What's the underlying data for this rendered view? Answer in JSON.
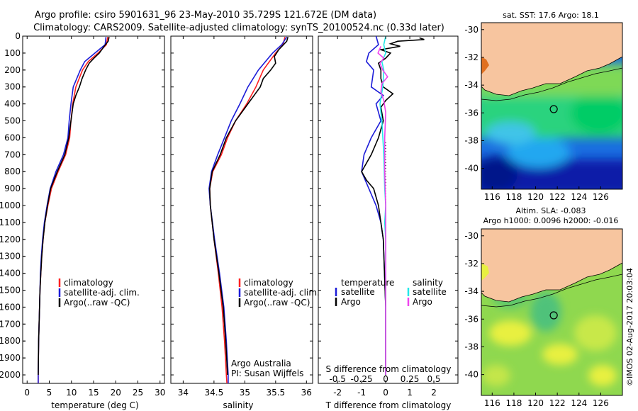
{
  "header": {
    "line1": "Argo profile: csiro 5901631_96 23-May-2010 35.729S 121.672E (DM data)",
    "line2": "Climatology: CARS2009. Satellite-adjusted climatology: synTS_20100524.nc (0.33d later)"
  },
  "colors": {
    "climatology": "#ff2020",
    "satellite": "#1c1cd8",
    "argo": "#000000",
    "satellite_s": "#22e8e8",
    "argo_s": "#ee44ee",
    "land": "#f7c59f"
  },
  "chart_data": [
    {
      "type": "line",
      "id": "temperature",
      "xlabel": "temperature (deg C)",
      "xlim": [
        -1,
        31
      ],
      "xticks": [
        "0",
        "5",
        "10",
        "15",
        "20",
        "25",
        "30"
      ],
      "xtick_values": [
        0,
        5,
        10,
        15,
        20,
        25,
        30
      ],
      "ylim": [
        2050,
        0
      ],
      "yticks": [
        "0",
        "100",
        "200",
        "300",
        "400",
        "500",
        "600",
        "700",
        "800",
        "900",
        "1000",
        "1100",
        "1200",
        "1300",
        "1400",
        "1500",
        "1600",
        "1700",
        "1800",
        "1900",
        "2000"
      ],
      "ytick_values": [
        0,
        100,
        200,
        300,
        400,
        500,
        600,
        700,
        800,
        900,
        1000,
        1100,
        1200,
        1300,
        1400,
        1500,
        1600,
        1700,
        1800,
        1900,
        2000
      ],
      "legend": [
        "climatology",
        "satellite-adj. clim.",
        "Argo(..raw -QC)"
      ],
      "series": [
        {
          "key": "climatology",
          "depth": [
            5,
            50,
            100,
            150,
            200,
            300,
            400,
            500,
            600,
            700,
            800,
            900,
            1000,
            1100,
            1200,
            1300,
            1400,
            1500,
            1600,
            1800,
            2000,
            2050
          ],
          "values": [
            18.2,
            17.9,
            16.0,
            13.8,
            12.5,
            11.0,
            10.3,
            9.9,
            9.6,
            8.7,
            7.0,
            5.5,
            4.7,
            4.0,
            3.6,
            3.3,
            3.1,
            2.9,
            2.8,
            2.6,
            2.5,
            2.5
          ]
        },
        {
          "key": "satellite",
          "depth": [
            5,
            50,
            100,
            150,
            200,
            300,
            400,
            500,
            600,
            700,
            800,
            900,
            1000,
            1100,
            1200,
            1300,
            1400,
            1500,
            1600,
            1800,
            2000,
            2050
          ],
          "values": [
            17.8,
            17.6,
            15.3,
            13.0,
            12.0,
            10.4,
            9.9,
            9.5,
            9.2,
            8.2,
            6.5,
            5.2,
            4.5,
            3.9,
            3.5,
            3.2,
            3.0,
            2.9,
            2.8,
            2.6,
            2.5,
            2.5
          ]
        },
        {
          "key": "argo",
          "depth": [
            5,
            30,
            60,
            100,
            130,
            160,
            200,
            250,
            300,
            350,
            400,
            500,
            600,
            700,
            800,
            900,
            1000,
            1100,
            1200,
            1300,
            1400,
            1500,
            1600,
            1800,
            2000
          ],
          "values": [
            18.5,
            18.3,
            17.4,
            16.3,
            15.1,
            14.0,
            13.2,
            12.4,
            11.8,
            11.0,
            10.4,
            9.9,
            9.4,
            8.5,
            6.8,
            5.3,
            4.6,
            4.0,
            3.6,
            3.3,
            3.1,
            2.9,
            2.8,
            2.6,
            2.5
          ]
        }
      ]
    },
    {
      "type": "line",
      "id": "salinity",
      "xlabel": "salinity",
      "xlim": [
        33.8,
        36.1
      ],
      "xticks": [
        "34",
        "34.5",
        "35",
        "35.5",
        "36"
      ],
      "xtick_values": [
        34,
        34.5,
        35,
        35.5,
        36
      ],
      "ylim": [
        2050,
        0
      ],
      "legend": [
        "climatology",
        "satellite-adj. clim.",
        "Argo(..raw -QC)"
      ],
      "annotation": [
        "Argo Australia",
        "PI: Susan Wijffels"
      ],
      "series": [
        {
          "key": "climatology",
          "depth": [
            5,
            50,
            100,
            200,
            300,
            400,
            500,
            600,
            700,
            800,
            900,
            1000,
            1200,
            1400,
            1600,
            1800,
            2000,
            2050
          ],
          "values": [
            35.65,
            35.62,
            35.5,
            35.3,
            35.18,
            35.03,
            34.85,
            34.72,
            34.62,
            34.48,
            34.43,
            34.44,
            34.5,
            34.57,
            34.63,
            34.67,
            34.7,
            34.71
          ]
        },
        {
          "key": "satellite",
          "depth": [
            5,
            50,
            100,
            200,
            300,
            400,
            500,
            600,
            700,
            800,
            900,
            1000,
            1200,
            1400,
            1600,
            1800,
            2000,
            2050
          ],
          "values": [
            35.68,
            35.6,
            35.45,
            35.22,
            35.05,
            34.92,
            34.78,
            34.67,
            34.56,
            34.46,
            34.42,
            34.44,
            34.51,
            34.59,
            34.66,
            34.7,
            34.73,
            34.73
          ]
        },
        {
          "key": "argo",
          "depth": [
            5,
            30,
            80,
            120,
            160,
            200,
            250,
            300,
            350,
            400,
            500,
            600,
            700,
            800,
            900,
            1000,
            1200,
            1400,
            1600,
            1800,
            2000
          ],
          "values": [
            35.7,
            35.68,
            35.55,
            35.48,
            35.5,
            35.42,
            35.3,
            35.25,
            35.15,
            35.05,
            34.85,
            34.7,
            34.6,
            34.47,
            34.43,
            34.44,
            34.5,
            34.58,
            34.65,
            34.69,
            34.72
          ]
        }
      ]
    },
    {
      "type": "line",
      "id": "difference",
      "xlabel": "T difference from climatology",
      "xlabel_top": "S difference from climatology",
      "xlim": [
        -2.8,
        3.0
      ],
      "xticks": [
        "-2",
        "-1",
        "0",
        "1",
        "2"
      ],
      "xtick_values": [
        -2,
        -1,
        0,
        1,
        2
      ],
      "s_ticks": [
        "-0.5",
        "-0.25",
        "0",
        "0.25",
        "0.5"
      ],
      "s_tick_values": [
        -0.5,
        -0.25,
        0,
        0.25,
        0.5
      ],
      "s_scale": 4,
      "ylim": [
        2050,
        0
      ],
      "legend_title_left": "temperature",
      "legend_title_right": "salinity",
      "legend_left": [
        "satellite",
        "Argo"
      ],
      "legend_right": [
        "satellite",
        "Argo"
      ],
      "series": [
        {
          "key": "satellite",
          "depth": [
            0,
            50,
            100,
            150,
            200,
            300,
            350,
            400,
            500,
            600,
            700,
            800,
            900,
            1000,
            1100,
            1200,
            1400,
            1600,
            1800,
            2000
          ],
          "values": [
            -0.4,
            -0.3,
            -0.7,
            -0.8,
            -0.5,
            -0.6,
            -0.1,
            -0.4,
            -0.2,
            -0.6,
            -0.9,
            -1.0,
            -0.7,
            -0.4,
            -0.2,
            -0.1,
            -0.05,
            0,
            0,
            0
          ]
        },
        {
          "key": "argo",
          "depth": [
            10,
            20,
            30,
            45,
            60,
            80,
            100,
            130,
            160,
            200,
            250,
            300,
            340,
            380,
            420,
            500,
            600,
            700,
            800,
            850,
            900,
            1000,
            1200,
            1400,
            1600,
            1800,
            2000
          ],
          "values": [
            1.4,
            1.6,
            0.5,
            0.2,
            0.6,
            -0.2,
            0.2,
            0.0,
            -0.3,
            -0.2,
            -0.2,
            -0.1,
            0.3,
            0.0,
            -0.2,
            -0.1,
            -0.3,
            -0.6,
            -1.0,
            -0.8,
            -0.5,
            -0.3,
            -0.1,
            -0.05,
            0,
            0,
            0
          ]
        },
        {
          "key": "satellite_s",
          "depth": [
            0,
            50,
            100,
            150,
            200,
            300,
            400,
            500,
            700,
            900,
            1000,
            1100,
            1200,
            1400,
            1600,
            1800,
            2000
          ],
          "values": [
            0.0,
            -0.02,
            0.0,
            -0.04,
            -0.02,
            -0.03,
            -0.06,
            -0.04,
            -0.02,
            -0.01,
            0.0,
            -0.01,
            0.0,
            0.0,
            0.0,
            0.0,
            0.0
          ]
        },
        {
          "key": "argo_s",
          "depth": [
            60,
            100,
            130,
            160,
            200,
            240,
            280,
            330,
            380,
            450,
            600,
            800,
            1000,
            1200,
            1400,
            1600,
            1800,
            2000
          ],
          "values": [
            -0.05,
            -0.08,
            -0.02,
            -0.06,
            -0.03,
            0.02,
            -0.04,
            -0.05,
            -0.02,
            0.0,
            -0.01,
            -0.01,
            0.0,
            0.0,
            0.0,
            0.0,
            0.0,
            0.0
          ]
        }
      ]
    },
    {
      "type": "heatmap",
      "id": "map_sst",
      "title": "sat. SST: 17.6 Argo: 18.1",
      "xlim": [
        115,
        128
      ],
      "ylim": [
        -41.5,
        -29.5
      ],
      "xticks": [
        "116",
        "118",
        "120",
        "122",
        "124",
        "126"
      ],
      "xtick_values": [
        116,
        118,
        120,
        122,
        124,
        126
      ],
      "yticks": [
        "-30",
        "-32",
        "-34",
        "-36",
        "-38",
        "-40"
      ],
      "ytick_values": [
        -30,
        -32,
        -34,
        -36,
        -38,
        -40
      ],
      "marker": {
        "lon": 121.672,
        "lat": -35.729
      }
    },
    {
      "type": "heatmap",
      "id": "map_sla",
      "title_lines": [
        "Altim. SLA: -0.083",
        "Argo h1000: 0.0096 h2000: -0.016"
      ],
      "xlim": [
        115,
        128
      ],
      "ylim": [
        -41.5,
        -29.5
      ],
      "xticks": [
        "116",
        "118",
        "120",
        "122",
        "124",
        "126"
      ],
      "xtick_values": [
        116,
        118,
        120,
        122,
        124,
        126
      ],
      "yticks": [
        "-30",
        "-32",
        "-34",
        "-36",
        "-38",
        "-40"
      ],
      "ytick_values": [
        -30,
        -32,
        -34,
        -36,
        -38,
        -40
      ],
      "marker": {
        "lon": 121.672,
        "lat": -35.729
      }
    }
  ],
  "credit": "©IMOS 02-Aug-2017 20:03:04"
}
